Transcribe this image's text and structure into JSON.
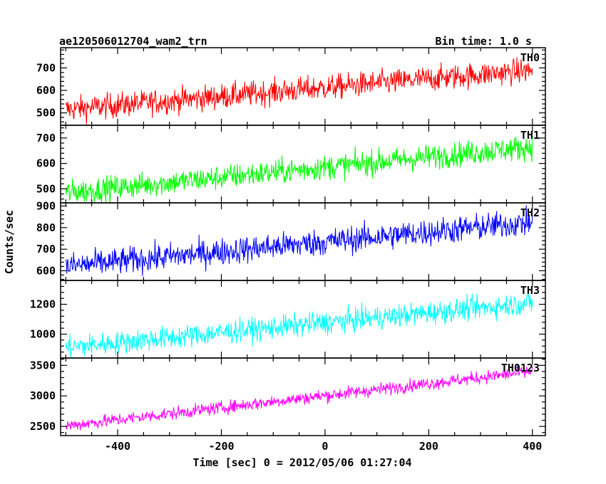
{
  "chart_data": {
    "type": "line",
    "title_left": "ae120506012704_wam2_trn",
    "title_right": "Bin time: 1.0 s",
    "xlabel": "Time [sec] 0 = 2012/05/06 01:27:04",
    "ylabel": "Counts/sec",
    "xlim": [
      -510,
      425
    ],
    "x_ticks": [
      -400,
      -200,
      0,
      200,
      400
    ],
    "x_start": -500,
    "x_end": 400,
    "x_step": 1,
    "panels": [
      {
        "name": "TH0",
        "color": "#ff0000",
        "ylim": [
          445,
          790
        ],
        "y_ticks": [
          500,
          600,
          700
        ],
        "start": 515,
        "end": 690,
        "noise": 40,
        "max": 790
      },
      {
        "name": "TH1",
        "color": "#00ff00",
        "ylim": [
          445,
          750
        ],
        "y_ticks": [
          500,
          600,
          700
        ],
        "start": 485,
        "end": 665,
        "noise": 35,
        "max": 750
      },
      {
        "name": "TH2",
        "color": "#0000ff",
        "ylim": [
          555,
          915
        ],
        "y_ticks": [
          600,
          700,
          800,
          900
        ],
        "start": 620,
        "end": 825,
        "noise": 45,
        "max": 915
      },
      {
        "name": "TH3",
        "color": "#00ffff",
        "ylim": [
          840,
          1360
        ],
        "y_ticks": [
          1000,
          1200
        ],
        "start": 910,
        "end": 1210,
        "noise": 55,
        "max": 1360
      },
      {
        "name": "TH0123",
        "color": "#ff00ff",
        "ylim": [
          2350,
          3620
        ],
        "y_ticks": [
          2500,
          3000,
          3500
        ],
        "start": 2510,
        "end": 3400,
        "noise": 75,
        "max": 3620
      }
    ]
  }
}
